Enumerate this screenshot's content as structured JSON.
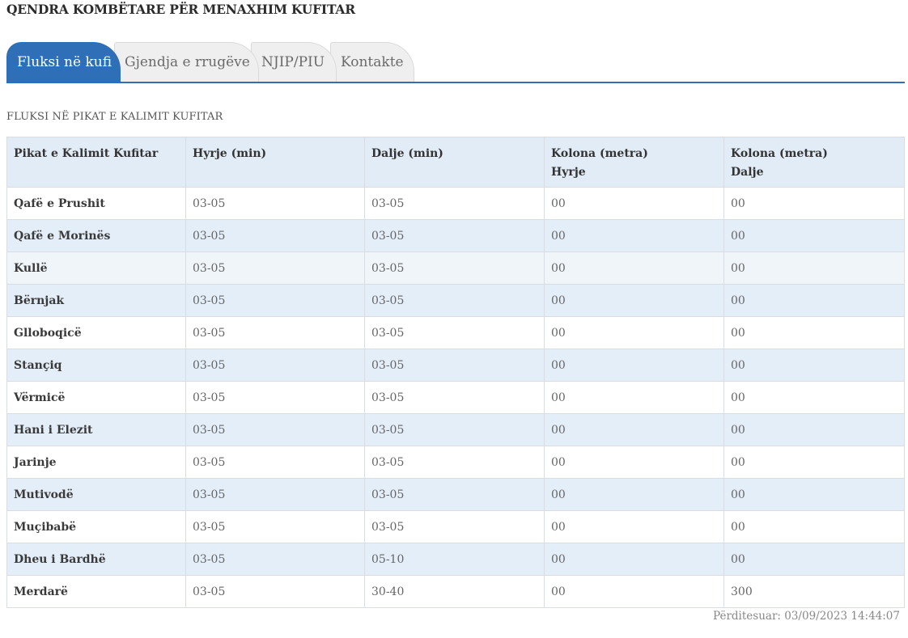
{
  "header": {
    "title": "QENDRA KOMBËTARE PËR MENAXHIM KUFITAR"
  },
  "tabs": [
    {
      "label": "Fluksi në kufi",
      "active": true
    },
    {
      "label": "Gjendja e rrugëve",
      "active": false
    },
    {
      "label": "NJIP/PIU",
      "active": false
    },
    {
      "label": "Kontakte",
      "active": false
    }
  ],
  "section": {
    "title": "FLUKSI NË PIKAT E KALIMIT KUFITAR"
  },
  "table": {
    "headers": [
      {
        "line1": "Pikat e Kalimit Kufitar",
        "line2": ""
      },
      {
        "line1": "Hyrje (min)",
        "line2": ""
      },
      {
        "line1": "Dalje (min)",
        "line2": ""
      },
      {
        "line1": "Kolona (metra)",
        "line2": "Hyrje"
      },
      {
        "line1": "Kolona (metra)",
        "line2": "Dalje"
      }
    ],
    "rows": [
      [
        "Qafë e Prushit",
        "03-05",
        "03-05",
        "00",
        "00"
      ],
      [
        "Qafë e Morinës",
        "03-05",
        "03-05",
        "00",
        "00"
      ],
      [
        "Kullë",
        "03-05",
        "03-05",
        "00",
        "00"
      ],
      [
        "Bërnjak",
        "03-05",
        "03-05",
        "00",
        "00"
      ],
      [
        "Glloboqicë",
        "03-05",
        "03-05",
        "00",
        "00"
      ],
      [
        "Stançiq",
        "03-05",
        "03-05",
        "00",
        "00"
      ],
      [
        "Vërmicë",
        "03-05",
        "03-05",
        "00",
        "00"
      ],
      [
        "Hani i Elezit",
        "03-05",
        "03-05",
        "00",
        "00"
      ],
      [
        "Jarinje",
        "03-05",
        "03-05",
        "00",
        "00"
      ],
      [
        "Mutivodë",
        "03-05",
        "03-05",
        "00",
        "00"
      ],
      [
        "Muçibabë",
        "03-05",
        "03-05",
        "00",
        "00"
      ],
      [
        "Dheu i Bardhë",
        "03-05",
        "05-10",
        "00",
        "00"
      ],
      [
        "Merdarë",
        "03-05",
        "30-40",
        "00",
        "300"
      ]
    ]
  },
  "footer": {
    "updated": "Përditesuar: 03/09/2023 14:44:07"
  },
  "colors": {
    "accent": "#2f6fb8",
    "header_bg": "#e1ecf6",
    "stripe": "#e4eef8"
  }
}
